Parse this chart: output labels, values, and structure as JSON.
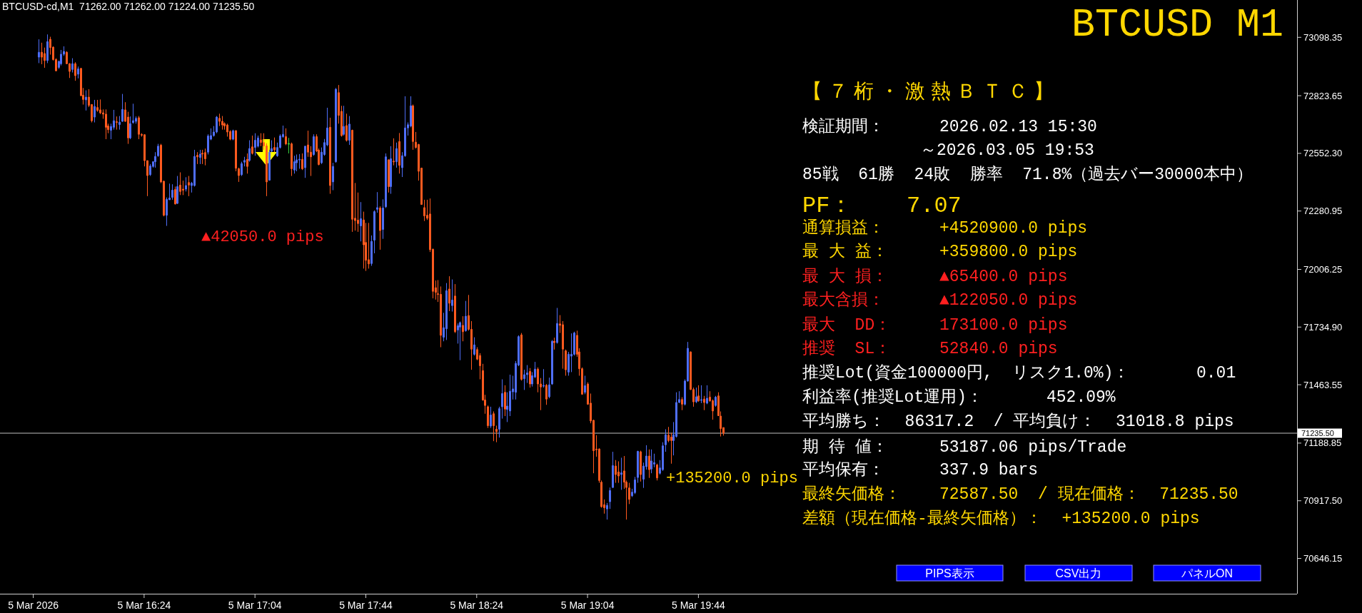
{
  "chart_data": {
    "type": "candlestick",
    "title": "BTCUSD M1",
    "subtitle": "BTCUSD-cd,M1  71262.00 71262.00 71224.00 71235.50",
    "xlim": [
      "2026-03-05T15:32",
      "2026-03-05T23:20"
    ],
    "ylim": [
      70480,
      73274
    ],
    "xticks": [
      {
        "value": "2026-03-05T15:44",
        "label": "5 Mar 2026"
      },
      {
        "value": "2026-03-05T16:24",
        "label": "5 Mar 16:24"
      },
      {
        "value": "2026-03-05T17:04",
        "label": "5 Mar 17:04"
      },
      {
        "value": "2026-03-05T17:44",
        "label": "5 Mar 17:44"
      },
      {
        "value": "2026-03-05T18:24",
        "label": "5 Mar 18:24"
      },
      {
        "value": "2026-03-05T19:04",
        "label": "5 Mar 19:04"
      },
      {
        "value": "2026-03-05T19:44",
        "label": "5 Mar 19:44"
      }
    ],
    "yticks": [
      73098.35,
      72823.65,
      {
        "value": 72552.3,
        "label": "72552.30"
      },
      72280.95,
      72006.25,
      {
        "value": 71734.9,
        "label": "71734.90"
      },
      71463.55,
      71188.85,
      {
        "value": 70917.5,
        "label": "70917.50"
      },
      70646.15
    ],
    "x": [
      "2026-03-05T15:46",
      "2026-03-05T15:47",
      "2026-03-05T15:48",
      "2026-03-05T15:49",
      "2026-03-05T15:50",
      "2026-03-05T15:51",
      "2026-03-05T15:52",
      "2026-03-05T15:53",
      "2026-03-05T15:54",
      "2026-03-05T15:55",
      "2026-03-05T15:56",
      "2026-03-05T15:57",
      "2026-03-05T15:58",
      "2026-03-05T15:59",
      "2026-03-05T16:00",
      "2026-03-05T16:01",
      "2026-03-05T16:02",
      "2026-03-05T16:03",
      "2026-03-05T16:04",
      "2026-03-05T16:05",
      "2026-03-05T16:06",
      "2026-03-05T16:07",
      "2026-03-05T16:08",
      "2026-03-05T16:09",
      "2026-03-05T16:10",
      "2026-03-05T16:11",
      "2026-03-05T16:12",
      "2026-03-05T16:13",
      "2026-03-05T16:14",
      "2026-03-05T16:15",
      "2026-03-05T16:16",
      "2026-03-05T16:17",
      "2026-03-05T16:18",
      "2026-03-05T16:19",
      "2026-03-05T16:20",
      "2026-03-05T16:21",
      "2026-03-05T16:22",
      "2026-03-05T16:23",
      "2026-03-05T16:24",
      "2026-03-05T16:25",
      "2026-03-05T16:26",
      "2026-03-05T16:27",
      "2026-03-05T16:28",
      "2026-03-05T16:29",
      "2026-03-05T16:30",
      "2026-03-05T16:31",
      "2026-03-05T16:32",
      "2026-03-05T16:33",
      "2026-03-05T16:34",
      "2026-03-05T16:35",
      "2026-03-05T16:36",
      "2026-03-05T16:37",
      "2026-03-05T16:38",
      "2026-03-05T16:39",
      "2026-03-05T16:40",
      "2026-03-05T16:41",
      "2026-03-05T16:42",
      "2026-03-05T16:43",
      "2026-03-05T16:44",
      "2026-03-05T16:45",
      "2026-03-05T16:46",
      "2026-03-05T16:47",
      "2026-03-05T16:48",
      "2026-03-05T16:49",
      "2026-03-05T16:50",
      "2026-03-05T16:51",
      "2026-03-05T16:52",
      "2026-03-05T16:53",
      "2026-03-05T16:54",
      "2026-03-05T16:55",
      "2026-03-05T16:56",
      "2026-03-05T16:57",
      "2026-03-05T16:58",
      "2026-03-05T16:59",
      "2026-03-05T17:00",
      "2026-03-05T17:01",
      "2026-03-05T17:02",
      "2026-03-05T17:03",
      "2026-03-05T17:04",
      "2026-03-05T17:05",
      "2026-03-05T17:06",
      "2026-03-05T17:07",
      "2026-03-05T17:08",
      "2026-03-05T17:09",
      "2026-03-05T17:10",
      "2026-03-05T17:11",
      "2026-03-05T17:12",
      "2026-03-05T17:13",
      "2026-03-05T17:14",
      "2026-03-05T17:15",
      "2026-03-05T17:16",
      "2026-03-05T17:17",
      "2026-03-05T17:18",
      "2026-03-05T17:19",
      "2026-03-05T17:20",
      "2026-03-05T17:21",
      "2026-03-05T17:22",
      "2026-03-05T17:23",
      "2026-03-05T17:24",
      "2026-03-05T17:25",
      "2026-03-05T17:26",
      "2026-03-05T17:27",
      "2026-03-05T17:28",
      "2026-03-05T17:29",
      "2026-03-05T17:30",
      "2026-03-05T17:31",
      "2026-03-05T17:32",
      "2026-03-05T17:33",
      "2026-03-05T17:34",
      "2026-03-05T17:35",
      "2026-03-05T17:36",
      "2026-03-05T17:37",
      "2026-03-05T17:38",
      "2026-03-05T17:39",
      "2026-03-05T17:40",
      "2026-03-05T17:41",
      "2026-03-05T17:42",
      "2026-03-05T17:43",
      "2026-03-05T17:44",
      "2026-03-05T17:45",
      "2026-03-05T17:46",
      "2026-03-05T17:47",
      "2026-03-05T17:48",
      "2026-03-05T17:49",
      "2026-03-05T17:50",
      "2026-03-05T17:51",
      "2026-03-05T17:52",
      "2026-03-05T17:53",
      "2026-03-05T17:54",
      "2026-03-05T17:55",
      "2026-03-05T17:56",
      "2026-03-05T17:57",
      "2026-03-05T17:58",
      "2026-03-05T17:59",
      "2026-03-05T18:00",
      "2026-03-05T18:01",
      "2026-03-05T18:02",
      "2026-03-05T18:03",
      "2026-03-05T18:04",
      "2026-03-05T18:05",
      "2026-03-05T18:06",
      "2026-03-05T18:07",
      "2026-03-05T18:08",
      "2026-03-05T18:09",
      "2026-03-05T18:10",
      "2026-03-05T18:11",
      "2026-03-05T18:12",
      "2026-03-05T18:13",
      "2026-03-05T18:14",
      "2026-03-05T18:15",
      "2026-03-05T18:16",
      "2026-03-05T18:17",
      "2026-03-05T18:18",
      "2026-03-05T18:19",
      "2026-03-05T18:20",
      "2026-03-05T18:21",
      "2026-03-05T18:22",
      "2026-03-05T18:23",
      "2026-03-05T18:24",
      "2026-03-05T18:25",
      "2026-03-05T18:26",
      "2026-03-05T18:27",
      "2026-03-05T18:28",
      "2026-03-05T18:29",
      "2026-03-05T18:30",
      "2026-03-05T18:31",
      "2026-03-05T18:32",
      "2026-03-05T18:33",
      "2026-03-05T18:34",
      "2026-03-05T18:35",
      "2026-03-05T18:36",
      "2026-03-05T18:37",
      "2026-03-05T18:38",
      "2026-03-05T18:39",
      "2026-03-05T18:40",
      "2026-03-05T18:41",
      "2026-03-05T18:42",
      "2026-03-05T18:43",
      "2026-03-05T18:44",
      "2026-03-05T18:45",
      "2026-03-05T18:46",
      "2026-03-05T18:47",
      "2026-03-05T18:48",
      "2026-03-05T18:49",
      "2026-03-05T18:50",
      "2026-03-05T18:51",
      "2026-03-05T18:52",
      "2026-03-05T18:53",
      "2026-03-05T18:54",
      "2026-03-05T18:55",
      "2026-03-05T18:56",
      "2026-03-05T18:57",
      "2026-03-05T18:58",
      "2026-03-05T18:59",
      "2026-03-05T19:00",
      "2026-03-05T19:01",
      "2026-03-05T19:02",
      "2026-03-05T19:03",
      "2026-03-05T19:04",
      "2026-03-05T19:05",
      "2026-03-05T19:06",
      "2026-03-05T19:07",
      "2026-03-05T19:08",
      "2026-03-05T19:09",
      "2026-03-05T19:10",
      "2026-03-05T19:11",
      "2026-03-05T19:12",
      "2026-03-05T19:13",
      "2026-03-05T19:14",
      "2026-03-05T19:15",
      "2026-03-05T19:16",
      "2026-03-05T19:17",
      "2026-03-05T19:18",
      "2026-03-05T19:19",
      "2026-03-05T19:20",
      "2026-03-05T19:21",
      "2026-03-05T19:22",
      "2026-03-05T19:23",
      "2026-03-05T19:24",
      "2026-03-05T19:25",
      "2026-03-05T19:26",
      "2026-03-05T19:27",
      "2026-03-05T19:28",
      "2026-03-05T19:29",
      "2026-03-05T19:30",
      "2026-03-05T19:31",
      "2026-03-05T19:32",
      "2026-03-05T19:33",
      "2026-03-05T19:34",
      "2026-03-05T19:35",
      "2026-03-05T19:36",
      "2026-03-05T19:37",
      "2026-03-05T19:38",
      "2026-03-05T19:39",
      "2026-03-05T19:40",
      "2026-03-05T19:41",
      "2026-03-05T19:42",
      "2026-03-05T19:43",
      "2026-03-05T19:44",
      "2026-03-05T19:45",
      "2026-03-05T19:46",
      "2026-03-05T19:47",
      "2026-03-05T19:48",
      "2026-03-05T19:49",
      "2026-03-05T19:50",
      "2026-03-05T19:51",
      "2026-03-05T19:52",
      "2026-03-05T19:53"
    ],
    "ohlc": [
      [
        73005,
        73089,
        72977,
        73028
      ],
      [
        73028,
        73073,
        72972,
        73005
      ],
      [
        73022,
        73050,
        72955,
        72989
      ],
      [
        72989,
        73112,
        72977,
        73078
      ],
      [
        73089,
        73101,
        73017,
        73050
      ],
      [
        73052,
        73056,
        72989,
        72994
      ],
      [
        72994,
        73000,
        72938,
        72941
      ],
      [
        72957,
        72989,
        72950,
        72985
      ],
      [
        72974,
        73039,
        72966,
        73019
      ],
      [
        73019,
        73056,
        73011,
        73032
      ],
      [
        73028,
        73033,
        72972,
        72974
      ],
      [
        72974,
        72977,
        72907,
        72938
      ],
      [
        72947,
        73000,
        72933,
        72974
      ],
      [
        72974,
        72981,
        72894,
        72918
      ],
      [
        72925,
        72961,
        72905,
        72950
      ],
      [
        72952,
        72955,
        72821,
        72824
      ],
      [
        72826,
        72860,
        72782,
        72806
      ],
      [
        72804,
        72849,
        72754,
        72817
      ],
      [
        72817,
        72854,
        72770,
        72778
      ],
      [
        72782,
        72784,
        72698,
        72706
      ],
      [
        72723,
        72804,
        72698,
        72773
      ],
      [
        72768,
        72804,
        72748,
        72754
      ],
      [
        72757,
        72806,
        72737,
        72743
      ],
      [
        72743,
        72759,
        72715,
        72737
      ],
      [
        72737,
        72759,
        72619,
        72675
      ],
      [
        72681,
        72692,
        72647,
        72664
      ],
      [
        72661,
        72692,
        72619,
        72679
      ],
      [
        72675,
        72757,
        72664,
        72706
      ],
      [
        72701,
        72726,
        72664,
        72698
      ],
      [
        72688,
        72728,
        72664,
        72699
      ],
      [
        72703,
        72832,
        72701,
        72759
      ],
      [
        72757,
        72793,
        72701,
        72703
      ],
      [
        72723,
        72748,
        72597,
        72625
      ],
      [
        72625,
        72726,
        72619,
        72692
      ],
      [
        72697,
        72786,
        72692,
        72706
      ],
      [
        72703,
        72726,
        72692,
        72717
      ],
      [
        72720,
        72728,
        72619,
        72642
      ],
      [
        72641,
        72647,
        72631,
        72638
      ],
      [
        72640,
        72642,
        72491,
        72518
      ],
      [
        72518,
        72518,
        72351,
        72448
      ],
      [
        72452,
        72502,
        72446,
        72493
      ],
      [
        72491,
        72515,
        72485,
        72513
      ],
      [
        72513,
        72558,
        72485,
        72538
      ],
      [
        72541,
        72597,
        72536,
        72586
      ],
      [
        72591,
        72597,
        72412,
        72418
      ],
      [
        72421,
        72424,
        72256,
        72261
      ],
      [
        72261,
        72345,
        72211,
        72336
      ],
      [
        72334,
        72410,
        72334,
        72342
      ],
      [
        72345,
        72407,
        72334,
        72379
      ],
      [
        72382,
        72396,
        72312,
        72314
      ],
      [
        72317,
        72446,
        72314,
        72396
      ],
      [
        72403,
        72463,
        72356,
        72373
      ],
      [
        72384,
        72424,
        72356,
        72379
      ],
      [
        72384,
        72440,
        72373,
        72401
      ],
      [
        72415,
        72446,
        72351,
        72403
      ],
      [
        72401,
        72418,
        72368,
        72412
      ],
      [
        72401,
        72569,
        72396,
        72538
      ],
      [
        72543,
        72558,
        72502,
        72536
      ],
      [
        72533,
        72569,
        72502,
        72549
      ],
      [
        72553,
        72569,
        72502,
        72549
      ],
      [
        72556,
        72575,
        72496,
        72527
      ],
      [
        72558,
        72642,
        72547,
        72634
      ],
      [
        72619,
        72670,
        72614,
        72636
      ],
      [
        72636,
        72681,
        72631,
        72653
      ],
      [
        72653,
        72728,
        72647,
        72723
      ],
      [
        72717,
        72739,
        72681,
        72703
      ],
      [
        72703,
        72728,
        72664,
        72686
      ],
      [
        72692,
        72698,
        72664,
        72681
      ],
      [
        72686,
        72692,
        72631,
        72653
      ],
      [
        72655,
        72661,
        72614,
        72619
      ],
      [
        72619,
        72664,
        72614,
        72659
      ],
      [
        72659,
        72661,
        72468,
        72482
      ],
      [
        72480,
        72485,
        72418,
        72448
      ],
      [
        72452,
        72513,
        72446,
        72504
      ],
      [
        72511,
        72536,
        72491,
        72519
      ],
      [
        72524,
        72552,
        72457,
        72491
      ],
      [
        72519,
        72614,
        72513,
        72575
      ],
      [
        72583,
        72636,
        72547,
        72552
      ],
      [
        72580,
        72647,
        72541,
        72614
      ],
      [
        72586,
        72636,
        72580,
        72625
      ],
      [
        72616,
        72647,
        72586,
        72603
      ],
      [
        72603,
        72647,
        72569,
        72587.5
      ],
      [
        72587.5,
        72600,
        72351,
        72418
      ],
      [
        72426,
        72569,
        72424,
        72558
      ],
      [
        72563,
        72614,
        72558,
        72575
      ],
      [
        72580,
        72627,
        72558,
        72569
      ],
      [
        72541,
        72603,
        72536,
        72580
      ],
      [
        72580,
        72642,
        72575,
        72634
      ],
      [
        72631,
        72683,
        72625,
        72642
      ],
      [
        72631,
        72670,
        72591,
        72597
      ],
      [
        72597,
        72625,
        72552,
        72597
      ],
      [
        72597,
        72603,
        72446,
        72480
      ],
      [
        72474,
        72541,
        72457,
        72513
      ],
      [
        72508,
        72547,
        72468,
        72522
      ],
      [
        72522,
        72549,
        72480,
        72524
      ],
      [
        72524,
        72552,
        72474,
        72480
      ],
      [
        72485,
        72586,
        72437,
        72586
      ],
      [
        72592,
        72659,
        72536,
        72558
      ],
      [
        72558,
        72586,
        72446,
        72536
      ],
      [
        72547,
        72642,
        72541,
        72631
      ],
      [
        72631,
        72642,
        72558,
        72564
      ],
      [
        72567,
        72575,
        72496,
        72500
      ],
      [
        72508,
        72580,
        72502,
        72558
      ],
      [
        72547,
        72620,
        72541,
        72603
      ],
      [
        72592,
        72767,
        72586,
        72672
      ],
      [
        72675,
        72720,
        72362,
        72401
      ],
      [
        72418,
        72508,
        72379,
        72491
      ],
      [
        72513,
        72860,
        72508,
        72854
      ],
      [
        72838,
        72874,
        72692,
        72731
      ],
      [
        72750,
        72776,
        72631,
        72636
      ],
      [
        72642,
        72776,
        72636,
        72679
      ],
      [
        72683,
        72739,
        72608,
        72614
      ],
      [
        72614,
        72728,
        72592,
        72690
      ],
      [
        72661,
        72664,
        72183,
        72242
      ],
      [
        72247,
        72413,
        72189,
        72236
      ],
      [
        72238,
        72368,
        72183,
        72222
      ],
      [
        72211,
        72323,
        72138,
        72245
      ],
      [
        72239,
        72278,
        72010,
        72122
      ],
      [
        72133,
        72225,
        71999,
        72049
      ],
      [
        72052,
        72225,
        72010,
        72032
      ],
      [
        72034,
        72166,
        72023,
        72138
      ],
      [
        72144,
        72284,
        72082,
        72278
      ],
      [
        72289,
        72370,
        72273,
        72297
      ],
      [
        72295,
        72303,
        72099,
        72189
      ],
      [
        72194,
        72336,
        72150,
        72295
      ],
      [
        72301,
        72552,
        72295,
        72536
      ],
      [
        72522,
        72524,
        72368,
        72396
      ],
      [
        72396,
        72586,
        72362,
        72527
      ],
      [
        72515,
        72623,
        72496,
        72513
      ],
      [
        72513,
        72603,
        72485,
        72575
      ],
      [
        72608,
        72648,
        72457,
        72496
      ],
      [
        72485,
        72558,
        72441,
        72541
      ],
      [
        72541,
        72821,
        72536,
        72672
      ],
      [
        72672,
        72698,
        72636,
        72687
      ],
      [
        72681,
        72821,
        72675,
        72776
      ],
      [
        72776,
        72782,
        72569,
        72608
      ],
      [
        72605,
        72653,
        72575,
        72580
      ],
      [
        72594,
        72597,
        72424,
        72468
      ],
      [
        72483,
        72485,
        72310,
        72312
      ],
      [
        72297,
        72334,
        72234,
        72258
      ],
      [
        72261,
        72334,
        72239,
        72247
      ],
      [
        72267,
        72340,
        72088,
        72099
      ],
      [
        72101,
        72104,
        71870,
        71903
      ],
      [
        71920,
        71954,
        71864,
        71898
      ],
      [
        71891,
        71956,
        71853,
        71889
      ],
      [
        71889,
        71926,
        71640,
        71696
      ],
      [
        71687,
        71802,
        71668,
        71732
      ],
      [
        71727,
        71942,
        71674,
        71906
      ],
      [
        71914,
        71974,
        71810,
        71847
      ],
      [
        71836,
        71959,
        71808,
        71862
      ],
      [
        71881,
        71937,
        71707,
        71713
      ],
      [
        71721,
        71752,
        71657,
        71741
      ],
      [
        71735,
        71761,
        71579,
        71756
      ],
      [
        71743,
        71786,
        71668,
        71713
      ],
      [
        71718,
        71858,
        71713,
        71786
      ],
      [
        71789,
        71886,
        71718,
        71724
      ],
      [
        71724,
        71763,
        71534,
        71631
      ],
      [
        71607,
        71687,
        71601,
        71651
      ],
      [
        71629,
        71640,
        71579,
        71584
      ],
      [
        71601,
        71612,
        71489,
        71553
      ],
      [
        71530,
        71562,
        71388,
        71392
      ],
      [
        71392,
        71416,
        71327,
        71366
      ],
      [
        71360,
        71366,
        71260,
        71271
      ],
      [
        71269,
        71360,
        71260,
        71321
      ],
      [
        71327,
        71338,
        71198,
        71271
      ],
      [
        71254,
        71271,
        71193,
        71243
      ],
      [
        71254,
        71360,
        71215,
        71351
      ],
      [
        71360,
        71489,
        71304,
        71422
      ],
      [
        71428,
        71461,
        71316,
        71349
      ],
      [
        71347,
        71428,
        71288,
        71363
      ],
      [
        71340,
        71511,
        71316,
        71433
      ],
      [
        71430,
        71506,
        71394,
        71444
      ],
      [
        71428,
        71575,
        71394,
        71564
      ],
      [
        71556,
        71696,
        71551,
        71690
      ],
      [
        71698,
        71707,
        71483,
        71489
      ],
      [
        71492,
        71534,
        71439,
        71511
      ],
      [
        71511,
        71556,
        71472,
        71519
      ],
      [
        71526,
        71542,
        71450,
        71467
      ],
      [
        71467,
        71523,
        71455,
        71506
      ],
      [
        71500,
        71571,
        71495,
        71537
      ],
      [
        71537,
        71545,
        71428,
        71467
      ],
      [
        71467,
        71495,
        71344,
        71453
      ],
      [
        71458,
        71537,
        71450,
        71459
      ],
      [
        71461,
        71467,
        71369,
        71396
      ],
      [
        71407,
        71497,
        71400,
        71463
      ],
      [
        71467,
        71674,
        71463,
        71668
      ],
      [
        71668,
        71685,
        71629,
        71662
      ],
      [
        71662,
        71825,
        71657,
        71752
      ],
      [
        71750,
        71791,
        71707,
        71743
      ],
      [
        71746,
        71763,
        71539,
        71631
      ],
      [
        71623,
        71629,
        71506,
        71534
      ],
      [
        71523,
        71618,
        71506,
        71607
      ],
      [
        71598,
        71705,
        71523,
        71607
      ],
      [
        71607,
        71713,
        71601,
        71707
      ],
      [
        71696,
        71718,
        71595,
        71607
      ],
      [
        71618,
        71635,
        71506,
        71539
      ],
      [
        71539,
        71545,
        71416,
        71419
      ],
      [
        71428,
        71506,
        71419,
        71459
      ],
      [
        71467,
        71475,
        71369,
        71372
      ],
      [
        71377,
        71422,
        71282,
        71293
      ],
      [
        71296,
        71299,
        71047,
        71153
      ],
      [
        71160,
        71226,
        71125,
        71158
      ],
      [
        71161,
        71164,
        71002,
        71013
      ],
      [
        71005,
        71013,
        70885,
        70890
      ],
      [
        70899,
        70924,
        70857,
        70885
      ],
      [
        70879,
        70907,
        70829,
        70896
      ],
      [
        70913,
        70980,
        70879,
        70966
      ],
      [
        70980,
        71148,
        70978,
        71083
      ],
      [
        71081,
        71109,
        71002,
        71041
      ],
      [
        71053,
        71103,
        71002,
        71034
      ],
      [
        71041,
        71120,
        70969,
        71049
      ],
      [
        71058,
        71128,
        70974,
        71005
      ],
      [
        71005,
        71013,
        70829,
        70980
      ],
      [
        70978,
        71002,
        70902,
        70924
      ],
      [
        70941,
        70974,
        70935,
        70958
      ],
      [
        70956,
        71030,
        70949,
        71016
      ],
      [
        71027,
        71153,
        71002,
        71150
      ],
      [
        71148,
        71153,
        71008,
        71041
      ],
      [
        71019,
        71097,
        70978,
        71081
      ],
      [
        71078,
        71179,
        71064,
        71128
      ],
      [
        71128,
        71159,
        71025,
        71064
      ],
      [
        71067,
        71159,
        71047,
        71105
      ],
      [
        71090,
        71139,
        71075,
        71097
      ],
      [
        71086,
        71092,
        71013,
        71025
      ],
      [
        71047,
        71109,
        71041,
        71072
      ],
      [
        71064,
        71193,
        71058,
        71176
      ],
      [
        71181,
        71254,
        71148,
        71228
      ],
      [
        71226,
        71265,
        71193,
        71201
      ],
      [
        71217,
        71237,
        71092,
        71201
      ],
      [
        71201,
        71288,
        71131,
        71228
      ],
      [
        71220,
        71428,
        71215,
        71380
      ],
      [
        71380,
        71433,
        71377,
        71394
      ],
      [
        71394,
        71405,
        71344,
        71372
      ],
      [
        71372,
        71489,
        71366,
        71481
      ],
      [
        71481,
        71665,
        71478,
        71635
      ],
      [
        71618,
        71620,
        71439,
        71441
      ],
      [
        71441,
        71450,
        71360,
        71383
      ],
      [
        71383,
        71450,
        71377,
        71407
      ],
      [
        71411,
        71461,
        71383,
        71388
      ],
      [
        71391,
        71461,
        71377,
        71392
      ],
      [
        71396,
        71411,
        71344,
        71380
      ],
      [
        71377,
        71461,
        71372,
        71400
      ],
      [
        71405,
        71433,
        71383,
        71388
      ],
      [
        71388,
        71394,
        71299,
        71340
      ],
      [
        71366,
        71411,
        71360,
        71405
      ],
      [
        71411,
        71428,
        71316,
        71318
      ],
      [
        71316,
        71338,
        71220,
        71257
      ],
      [
        71262,
        71262,
        71224,
        71235.5
      ]
    ],
    "colors": [
      "#4f6ef7",
      "#ff5a1f",
      "#ff5a1f",
      "#4f6ef7",
      "#ff5a1f",
      "#ff5a1f",
      "#ff5a1f",
      "#4f6ef7",
      "#4f6ef7",
      "#4f6ef7",
      "#ff5a1f",
      "#ff5a1f",
      "#4f6ef7",
      "#ff5a1f",
      "#4f6ef7",
      "#ff5a1f",
      "#ff5a1f",
      "#4f6ef7",
      "#ff5a1f",
      "#ff5a1f",
      "#4f6ef7",
      "#ff5a1f",
      "#ff5a1f",
      "#ff5a1f",
      "#ff5a1f",
      "#ff5a1f",
      "#4f6ef7",
      "#4f6ef7",
      "#ff5a1f",
      "#4f6ef7",
      "#4f6ef7",
      "#ff5a1f",
      "#ff5a1f",
      "#4f6ef7",
      "#4f6ef7",
      "#4f6ef7",
      "#ff5a1f",
      "#ff5a1f",
      "#ff5a1f",
      "#ff5a1f",
      "#4f6ef7",
      "#4f6ef7",
      "#4f6ef7",
      "#4f6ef7",
      "#ff5a1f",
      "#ff5a1f",
      "#4f6ef7",
      "#4f6ef7",
      "#4f6ef7",
      "#ff5a1f",
      "#4f6ef7",
      "#ff5a1f",
      "#ff5a1f",
      "#4f6ef7",
      "#ff5a1f",
      "#4f6ef7",
      "#4f6ef7",
      "#ff5a1f",
      "#4f6ef7",
      "#ff5a1f",
      "#ff5a1f",
      "#4f6ef7",
      "#4f6ef7",
      "#4f6ef7",
      "#4f6ef7",
      "#ff5a1f",
      "#ff5a1f",
      "#ff5a1f",
      "#ff5a1f",
      "#ff5a1f",
      "#4f6ef7",
      "#ff5a1f",
      "#ff5a1f",
      "#4f6ef7",
      "#4f6ef7",
      "#ff5a1f",
      "#4f6ef7",
      "#ff5a1f",
      "#4f6ef7",
      "#4f6ef7",
      "#ff5a1f",
      "#ff5a1f",
      "#ff5a1f",
      "#4f6ef7",
      "#4f6ef7",
      "#ff5a1f",
      "#4f6ef7",
      "#4f6ef7",
      "#4f6ef7",
      "#ff5a1f",
      "#3cd23c",
      "#ff5a1f",
      "#4f6ef7",
      "#4f6ef7",
      "#4f6ef7",
      "#ff5a1f",
      "#4f6ef7",
      "#ff5a1f",
      "#ff5a1f",
      "#4f6ef7",
      "#ff5a1f",
      "#ff5a1f",
      "#4f6ef7",
      "#4f6ef7",
      "#4f6ef7",
      "#ff5a1f",
      "#4f6ef7",
      "#4f6ef7",
      "#ff5a1f",
      "#ff5a1f",
      "#4f6ef7",
      "#ff5a1f",
      "#4f6ef7",
      "#ff5a1f",
      "#ff5a1f",
      "#ff5a1f",
      "#4f6ef7",
      "#ff5a1f",
      "#ff5a1f",
      "#ff5a1f",
      "#4f6ef7",
      "#4f6ef7",
      "#4f6ef7",
      "#ff5a1f",
      "#4f6ef7",
      "#4f6ef7",
      "#ff5a1f",
      "#4f6ef7",
      "#ff5a1f",
      "#4f6ef7",
      "#ff5a1f",
      "#4f6ef7",
      "#4f6ef7",
      "#4f6ef7",
      "#4f6ef7",
      "#ff5a1f",
      "#ff5a1f",
      "#ff5a1f",
      "#ff5a1f",
      "#ff5a1f",
      "#ff5a1f",
      "#ff5a1f",
      "#ff5a1f",
      "#ff5a1f",
      "#ff5a1f",
      "#ff5a1f",
      "#4f6ef7",
      "#4f6ef7",
      "#ff5a1f",
      "#4f6ef7",
      "#ff5a1f",
      "#4f6ef7",
      "#4f6ef7",
      "#ff5a1f",
      "#4f6ef7",
      "#ff5a1f",
      "#ff5a1f",
      "#4f6ef7",
      "#ff5a1f",
      "#ff5a1f",
      "#ff5a1f",
      "#ff5a1f",
      "#ff5a1f",
      "#4f6ef7",
      "#ff5a1f",
      "#ff5a1f",
      "#4f6ef7",
      "#4f6ef7",
      "#ff5a1f",
      "#4f6ef7",
      "#4f6ef7",
      "#4f6ef7",
      "#4f6ef7",
      "#4f6ef7",
      "#ff5a1f",
      "#4f6ef7",
      "#4f6ef7",
      "#ff5a1f",
      "#4f6ef7",
      "#4f6ef7",
      "#ff5a1f",
      "#ff5a1f",
      "#4f6ef7",
      "#ff5a1f",
      "#4f6ef7",
      "#4f6ef7",
      "#ff5a1f",
      "#4f6ef7",
      "#ff5a1f",
      "#ff5a1f",
      "#ff5a1f",
      "#4f6ef7",
      "#4f6ef7",
      "#4f6ef7",
      "#ff5a1f",
      "#ff5a1f",
      "#ff5a1f",
      "#4f6ef7",
      "#ff5a1f",
      "#ff5a1f",
      "#ff5a1f",
      "#ff5a1f",
      "#ff5a1f",
      "#ff5a1f",
      "#ff5a1f",
      "#4f6ef7",
      "#4f6ef7",
      "#4f6ef7",
      "#ff5a1f",
      "#ff5a1f",
      "#4f6ef7",
      "#ff5a1f",
      "#ff5a1f",
      "#ff5a1f",
      "#4f6ef7",
      "#4f6ef7",
      "#4f6ef7",
      "#ff5a1f",
      "#4f6ef7",
      "#4f6ef7",
      "#ff5a1f",
      "#4f6ef7",
      "#4f6ef7",
      "#ff5a1f",
      "#4f6ef7",
      "#4f6ef7",
      "#4f6ef7",
      "#ff5a1f",
      "#ff5a1f",
      "#4f6ef7",
      "#4f6ef7",
      "#4f6ef7",
      "#ff5a1f",
      "#4f6ef7",
      "#4f6ef7",
      "#ff5a1f",
      "#ff5a1f",
      "#4f6ef7",
      "#ff5a1f",
      "#4f6ef7",
      "#ff5a1f",
      "#4f6ef7",
      "#ff5a1f",
      "#ff5a1f",
      "#4f6ef7",
      "#ff5a1f",
      "#ff5a1f",
      "#ff5a1f"
    ],
    "ref_lines": [
      {
        "axis": "y",
        "value": 71235.5,
        "label": "71235.50",
        "color": "#c0c0c0"
      }
    ],
    "annotations": [
      "▲42050.0 pips",
      "+135200.0 pips",
      "【７桁・激熱ＢＴＣ】",
      "検証期間：",
      "2026.02.13 15:30",
      "～2026.03.05 19:53",
      "85戦  61勝  24敗  勝率  71.8%（過去バー30000本中）",
      "PF：",
      "7.07",
      "通算損益：",
      "+4520900.0 pips",
      "最 大 益：",
      "+359800.0 pips",
      "最 大 損：",
      "▲65400.0 pips",
      "最大含損：",
      "▲122050.0 pips",
      "最大  DD：",
      "173100.0 pips",
      "推奨  SL：",
      "52840.0 pips",
      "推奨Lot(資金100000円,  リスク1.0%)：",
      "0.01",
      "利益率(推奨Lot運用)：",
      "452.09%",
      "平均勝ち：  86317.2  / 平均負け：  31018.8 pips",
      "期 待 値：",
      "53187.06 pips/Trade",
      "平均保有：",
      "337.9 bars",
      "最終矢価格：",
      "72587.50  / 現在価格：  71235.50",
      "差額（現在価格-最終矢価格）：  +135200.0 pips",
      "PIPS表示",
      "CSV出力",
      "パネルON"
    ]
  }
}
